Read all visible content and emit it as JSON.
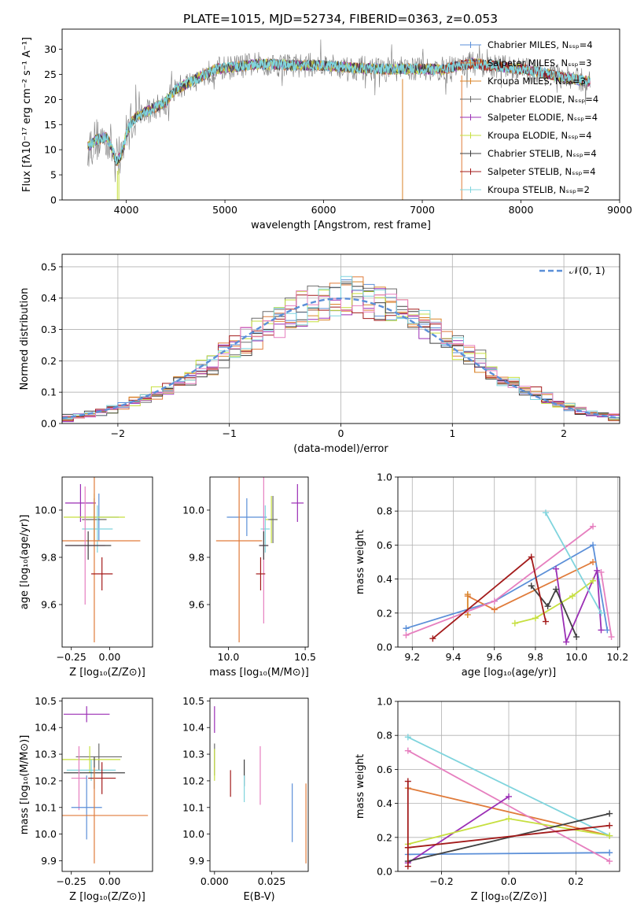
{
  "figure_title": "PLATE=1015, MJD=52734, FIBERID=0363, z=0.053",
  "colors": {
    "chabrier_miles": "#5b8fd8",
    "salpeter_miles": "#e07b3a",
    "kroupa_miles": "#d9852a",
    "chabrier_elodie": "#6b6b6b",
    "salpeter_elodie": "#9b2fb5",
    "kroupa_elodie": "#c6df3f",
    "chabrier_stelib": "#404040",
    "salpeter_stelib": "#a31b1b",
    "kroupa_stelib": "#7fd4dd",
    "pink": "#e67fbf",
    "gauss": "#5b8fd8"
  },
  "chart_data": [
    {
      "id": "spectrum",
      "type": "line",
      "title": "PLATE=1015, MJD=52734, FIBERID=0363, z=0.053",
      "xlabel": "wavelength [Angstrom, rest frame]",
      "ylabel": "Flux [fλ10⁻¹⁷ erg cm⁻² s⁻¹ A⁻¹]",
      "xlim": [
        3350,
        9000
      ],
      "ylim": [
        0,
        34
      ],
      "xticks": [
        "4000",
        "5000",
        "6000",
        "7000",
        "8000",
        "9000"
      ],
      "yticks": [
        "0",
        "5",
        "10",
        "15",
        "20",
        "25",
        "30"
      ],
      "continuum": {
        "x": [
          3610,
          3700,
          3800,
          3850,
          3900,
          3950,
          4000,
          4050,
          4100,
          4200,
          4300,
          4400,
          4500,
          4700,
          4900,
          5100,
          5300,
          5500,
          5700,
          6000,
          6300,
          6600,
          6900,
          7200,
          7500,
          7800,
          8100,
          8400,
          8700
        ],
        "y": [
          10.5,
          12,
          12.5,
          10.5,
          7.5,
          9,
          13,
          15.5,
          16.5,
          17.5,
          18.5,
          19.5,
          22,
          24,
          26,
          26.5,
          27,
          27,
          26.8,
          26.8,
          26.3,
          26,
          26.1,
          26,
          27.2,
          26.5,
          25.8,
          24.5,
          23.5
        ]
      },
      "legend_position": "top-right",
      "legend": [
        "Chabrier MILES, Nₛₛₚ=4",
        "Salpeter MILES, Nₛₛₚ=3",
        "Kroupa MILES, Nₛₛₚ=3",
        "Chabrier ELODIE, Nₛₛₚ=4",
        "Salpeter ELODIE, Nₛₛₚ=4",
        "Kroupa ELODIE, Nₛₛₚ=4",
        "Chabrier STELIB, Nₛₛₚ=4",
        "Salpeter STELIB, Nₛₛₚ=4",
        "Kroupa STELIB, Nₛₛₚ=2"
      ]
    },
    {
      "id": "residuals",
      "type": "line",
      "xlabel": "(data-model)/error",
      "ylabel": "Normed distribution",
      "xlim": [
        -2.5,
        2.5
      ],
      "ylim": [
        0,
        0.54
      ],
      "xticks": [
        "−2",
        "−1",
        "0",
        "1",
        "2"
      ],
      "yticks": [
        "0.0",
        "0.1",
        "0.2",
        "0.3",
        "0.4",
        "0.5"
      ],
      "grid": true,
      "legend": "𝒩(0, 1)",
      "legend_position": "top-right",
      "bin_width": 0.1,
      "bin_start": -2.5
    },
    {
      "id": "age_vs_z",
      "type": "scatter",
      "xlabel": "Z [log₁₀(Z/Z⊙)]",
      "ylabel": "age [log₁₀(age/yr)]",
      "xlim": [
        -0.31,
        0.28
      ],
      "ylim": [
        9.42,
        10.14
      ],
      "xticks": [
        "−0.25",
        "0.00"
      ],
      "yticks": [
        "9.6",
        "9.8",
        "10.0"
      ],
      "points": [
        {
          "x": -0.19,
          "y": 10.03,
          "xerr": 0.1,
          "yerr": 0.08,
          "series": "salpeter_elodie"
        },
        {
          "x": -0.07,
          "y": 9.97,
          "xerr": 0.13,
          "yerr": 0.1,
          "series": "chabrier_miles"
        },
        {
          "x": -0.1,
          "y": 9.97,
          "xerr": 0.2,
          "yerr": 0.1,
          "series": "kroupa_elodie"
        },
        {
          "x": -0.1,
          "y": 9.96,
          "xerr": 0.08,
          "yerr": 0.09,
          "series": "chabrier_elodie"
        },
        {
          "x": -0.08,
          "y": 9.92,
          "xerr": 0.1,
          "yerr": 0.1,
          "series": "kroupa_stelib"
        },
        {
          "x": -0.1,
          "y": 9.87,
          "xerr": 0.3,
          "yerr": 0.43,
          "series": "salpeter_miles"
        },
        {
          "x": -0.16,
          "y": 9.85,
          "xerr": 0.13,
          "yerr": 0.25,
          "series": "pink"
        },
        {
          "x": -0.14,
          "y": 9.85,
          "xerr": 0.15,
          "yerr": 0.06,
          "series": "chabrier_stelib"
        },
        {
          "x": -0.05,
          "y": 9.73,
          "xerr": 0.07,
          "yerr": 0.07,
          "series": "salpeter_stelib"
        }
      ]
    },
    {
      "id": "age_vs_mass",
      "type": "scatter",
      "xlabel": "mass [log₁₀(M/M⊙)]",
      "ylabel": "",
      "xlim": [
        9.88,
        10.52
      ],
      "ylim": [
        9.42,
        10.14
      ],
      "xticks": [
        "10.0",
        "10.5"
      ],
      "yticks": [
        "9.6",
        "9.8",
        "10.0"
      ],
      "points": [
        {
          "x": 10.45,
          "y": 10.03,
          "xerr": 0.04,
          "yerr": 0.08,
          "series": "salpeter_elodie"
        },
        {
          "x": 10.12,
          "y": 9.97,
          "xerr": 0.13,
          "yerr": 0.08,
          "series": "chabrier_miles"
        },
        {
          "x": 10.28,
          "y": 9.96,
          "xerr": 0.04,
          "yerr": 0.1,
          "series": "kroupa_elodie"
        },
        {
          "x": 10.29,
          "y": 9.96,
          "xerr": 0.03,
          "yerr": 0.1,
          "series": "chabrier_elodie"
        },
        {
          "x": 10.24,
          "y": 9.92,
          "xerr": 0.03,
          "yerr": 0.1,
          "series": "kroupa_stelib"
        },
        {
          "x": 10.07,
          "y": 9.87,
          "xerr": 0.15,
          "yerr": 0.43,
          "series": "salpeter_miles"
        },
        {
          "x": 10.23,
          "y": 9.85,
          "xerr": 0.03,
          "yerr": 0.33,
          "series": "pink"
        },
        {
          "x": 10.23,
          "y": 9.85,
          "xerr": 0.03,
          "yerr": 0.06,
          "series": "chabrier_stelib"
        },
        {
          "x": 10.21,
          "y": 9.73,
          "xerr": 0.03,
          "yerr": 0.07,
          "series": "salpeter_stelib"
        }
      ]
    },
    {
      "id": "mass_weight_vs_age",
      "type": "line",
      "xlabel": "age [log₁₀(age/yr)]",
      "ylabel": "mass weight",
      "xlim": [
        9.13,
        10.21
      ],
      "ylim": [
        0,
        1
      ],
      "xticks": [
        "9.2",
        "9.4",
        "9.6",
        "9.8",
        "10.0",
        "10.2"
      ],
      "yticks": [
        "0.0",
        "0.2",
        "0.4",
        "0.6",
        "0.8",
        "1.0"
      ],
      "grid": true,
      "series": [
        {
          "key": "chabrier_miles",
          "x": [
            9.17,
            9.6,
            10.08,
            10.15
          ],
          "y": [
            0.11,
            0.27,
            0.6,
            0.1
          ]
        },
        {
          "key": "salpeter_miles",
          "x": [
            9.47,
            9.6,
            10.08
          ],
          "y": [
            0.3,
            0.22,
            0.5
          ]
        },
        {
          "key": "kroupa_miles",
          "x": [
            9.47,
            9.47
          ],
          "y": [
            0.19,
            0.31
          ]
        },
        {
          "key": "pink",
          "x": [
            9.17,
            9.6,
            10.08
          ],
          "y": [
            0.07,
            0.27,
            0.71
          ]
        },
        {
          "key": "salpeter_elodie",
          "x": [
            9.9,
            9.95,
            10.1,
            10.12
          ],
          "y": [
            0.46,
            0.03,
            0.45,
            0.1
          ]
        },
        {
          "key": "kroupa_elodie",
          "x": [
            9.7,
            9.8,
            9.98,
            10.08
          ],
          "y": [
            0.14,
            0.17,
            0.3,
            0.39
          ]
        },
        {
          "key": "chabrier_stelib",
          "x": [
            9.78,
            9.86,
            9.9,
            10.0
          ],
          "y": [
            0.36,
            0.24,
            0.34,
            0.06
          ]
        },
        {
          "key": "salpeter_stelib",
          "x": [
            9.3,
            9.78,
            9.85
          ],
          "y": [
            0.05,
            0.53,
            0.15
          ]
        },
        {
          "key": "kroupa_stelib",
          "x": [
            9.85,
            10.12
          ],
          "y": [
            0.79,
            0.2
          ]
        },
        {
          "key": "pink",
          "x": [
            10.12,
            10.17
          ],
          "y": [
            0.44,
            0.06
          ]
        }
      ]
    },
    {
      "id": "mass_vs_z",
      "type": "scatter",
      "xlabel": "Z [log₁₀(Z/Z⊙)]",
      "ylabel": "mass [log₁₀(M/M⊙)]",
      "xlim": [
        -0.31,
        0.28
      ],
      "ylim": [
        9.86,
        10.51
      ],
      "xticks": [
        "−0.25",
        "0.00"
      ],
      "yticks": [
        "9.9",
        "10.0",
        "10.1",
        "10.2",
        "10.3",
        "10.4",
        "10.5"
      ],
      "points": [
        {
          "x": -0.15,
          "y": 10.45,
          "xerr": 0.15,
          "yerr": 0.03,
          "series": "salpeter_elodie"
        },
        {
          "x": -0.07,
          "y": 10.29,
          "xerr": 0.15,
          "yerr": 0.05,
          "series": "chabrier_elodie"
        },
        {
          "x": -0.13,
          "y": 10.28,
          "xerr": 0.2,
          "yerr": 0.05,
          "series": "kroupa_elodie"
        },
        {
          "x": -0.12,
          "y": 10.24,
          "xerr": 0.16,
          "yerr": 0.04,
          "series": "kroupa_stelib"
        },
        {
          "x": -0.1,
          "y": 10.23,
          "xerr": 0.2,
          "yerr": 0.06,
          "series": "chabrier_stelib"
        },
        {
          "x": -0.2,
          "y": 10.21,
          "xerr": 0.05,
          "yerr": 0.12,
          "series": "pink"
        },
        {
          "x": -0.05,
          "y": 10.21,
          "xerr": 0.09,
          "yerr": 0.06,
          "series": "salpeter_stelib"
        },
        {
          "x": -0.15,
          "y": 10.1,
          "xerr": 0.1,
          "yerr": 0.12,
          "series": "chabrier_miles"
        },
        {
          "x": -0.1,
          "y": 10.07,
          "xerr": 0.35,
          "yerr": 0.18,
          "series": "salpeter_miles"
        }
      ]
    },
    {
      "id": "mass_vs_ebv",
      "type": "scatter",
      "xlabel": "E(B-V)",
      "ylabel": "",
      "xlim": [
        -0.002,
        0.041
      ],
      "ylim": [
        9.86,
        10.51
      ],
      "xticks": [
        "0.000",
        "0.025"
      ],
      "yticks": [
        "9.9",
        "10.0",
        "10.1",
        "10.2",
        "10.3",
        "10.4",
        "10.5"
      ],
      "points": [
        {
          "x": 0.0,
          "y": 10.43,
          "xerr": 0,
          "yerr": 0.05,
          "series": "salpeter_elodie"
        },
        {
          "x": 0.0,
          "y": 10.28,
          "xerr": 0,
          "yerr": 0.06,
          "series": "chabrier_elodie"
        },
        {
          "x": 0.0,
          "y": 10.26,
          "xerr": 0,
          "yerr": 0.06,
          "series": "kroupa_elodie"
        },
        {
          "x": 0.007,
          "y": 10.19,
          "xerr": 0,
          "yerr": 0.05,
          "series": "salpeter_stelib"
        },
        {
          "x": 0.013,
          "y": 10.23,
          "xerr": 0,
          "yerr": 0.05,
          "series": "chabrier_stelib"
        },
        {
          "x": 0.013,
          "y": 10.17,
          "xerr": 0,
          "yerr": 0.05,
          "series": "kroupa_stelib"
        },
        {
          "x": 0.02,
          "y": 10.22,
          "xerr": 0,
          "yerr": 0.11,
          "series": "pink"
        },
        {
          "x": 0.034,
          "y": 10.08,
          "xerr": 0,
          "yerr": 0.11,
          "series": "chabrier_miles"
        },
        {
          "x": 0.04,
          "y": 10.04,
          "xerr": 0,
          "yerr": 0.15,
          "series": "salpeter_miles"
        }
      ]
    },
    {
      "id": "mass_weight_vs_z",
      "type": "line",
      "xlabel": "Z [log₁₀(Z/Z⊙)]",
      "ylabel": "mass weight",
      "xlim": [
        -0.33,
        0.33
      ],
      "ylim": [
        0,
        1
      ],
      "xticks": [
        "−0.2",
        "0.0",
        "0.2"
      ],
      "yticks": [
        "0.0",
        "0.2",
        "0.4",
        "0.6",
        "0.8",
        "1.0"
      ],
      "grid": true,
      "series": [
        {
          "key": "chabrier_miles",
          "x": [
            -0.3,
            0.3
          ],
          "y": [
            0.1,
            0.11
          ]
        },
        {
          "key": "salpeter_miles",
          "x": [
            -0.3,
            0.3
          ],
          "y": [
            0.49,
            0.21
          ]
        },
        {
          "key": "kroupa_stelib",
          "x": [
            -0.3,
            0.3
          ],
          "y": [
            0.79,
            0.21
          ]
        },
        {
          "key": "pink",
          "x": [
            -0.3,
            0.3
          ],
          "y": [
            0.71,
            0.06
          ]
        },
        {
          "key": "salpeter_elodie",
          "x": [
            -0.3,
            0.0
          ],
          "y": [
            0.05,
            0.44
          ]
        },
        {
          "key": "kroupa_elodie",
          "x": [
            -0.3,
            0.0,
            0.3
          ],
          "y": [
            0.16,
            0.31,
            0.21
          ]
        },
        {
          "key": "chabrier_stelib",
          "x": [
            -0.3,
            0.3
          ],
          "y": [
            0.06,
            0.34
          ]
        },
        {
          "key": "salpeter_stelib",
          "x": [
            -0.3,
            0.3
          ],
          "y": [
            0.14,
            0.27
          ]
        },
        {
          "key": "salpeter_stelib",
          "x": [
            -0.3,
            -0.3
          ],
          "y": [
            0.03,
            0.53
          ]
        }
      ]
    }
  ]
}
